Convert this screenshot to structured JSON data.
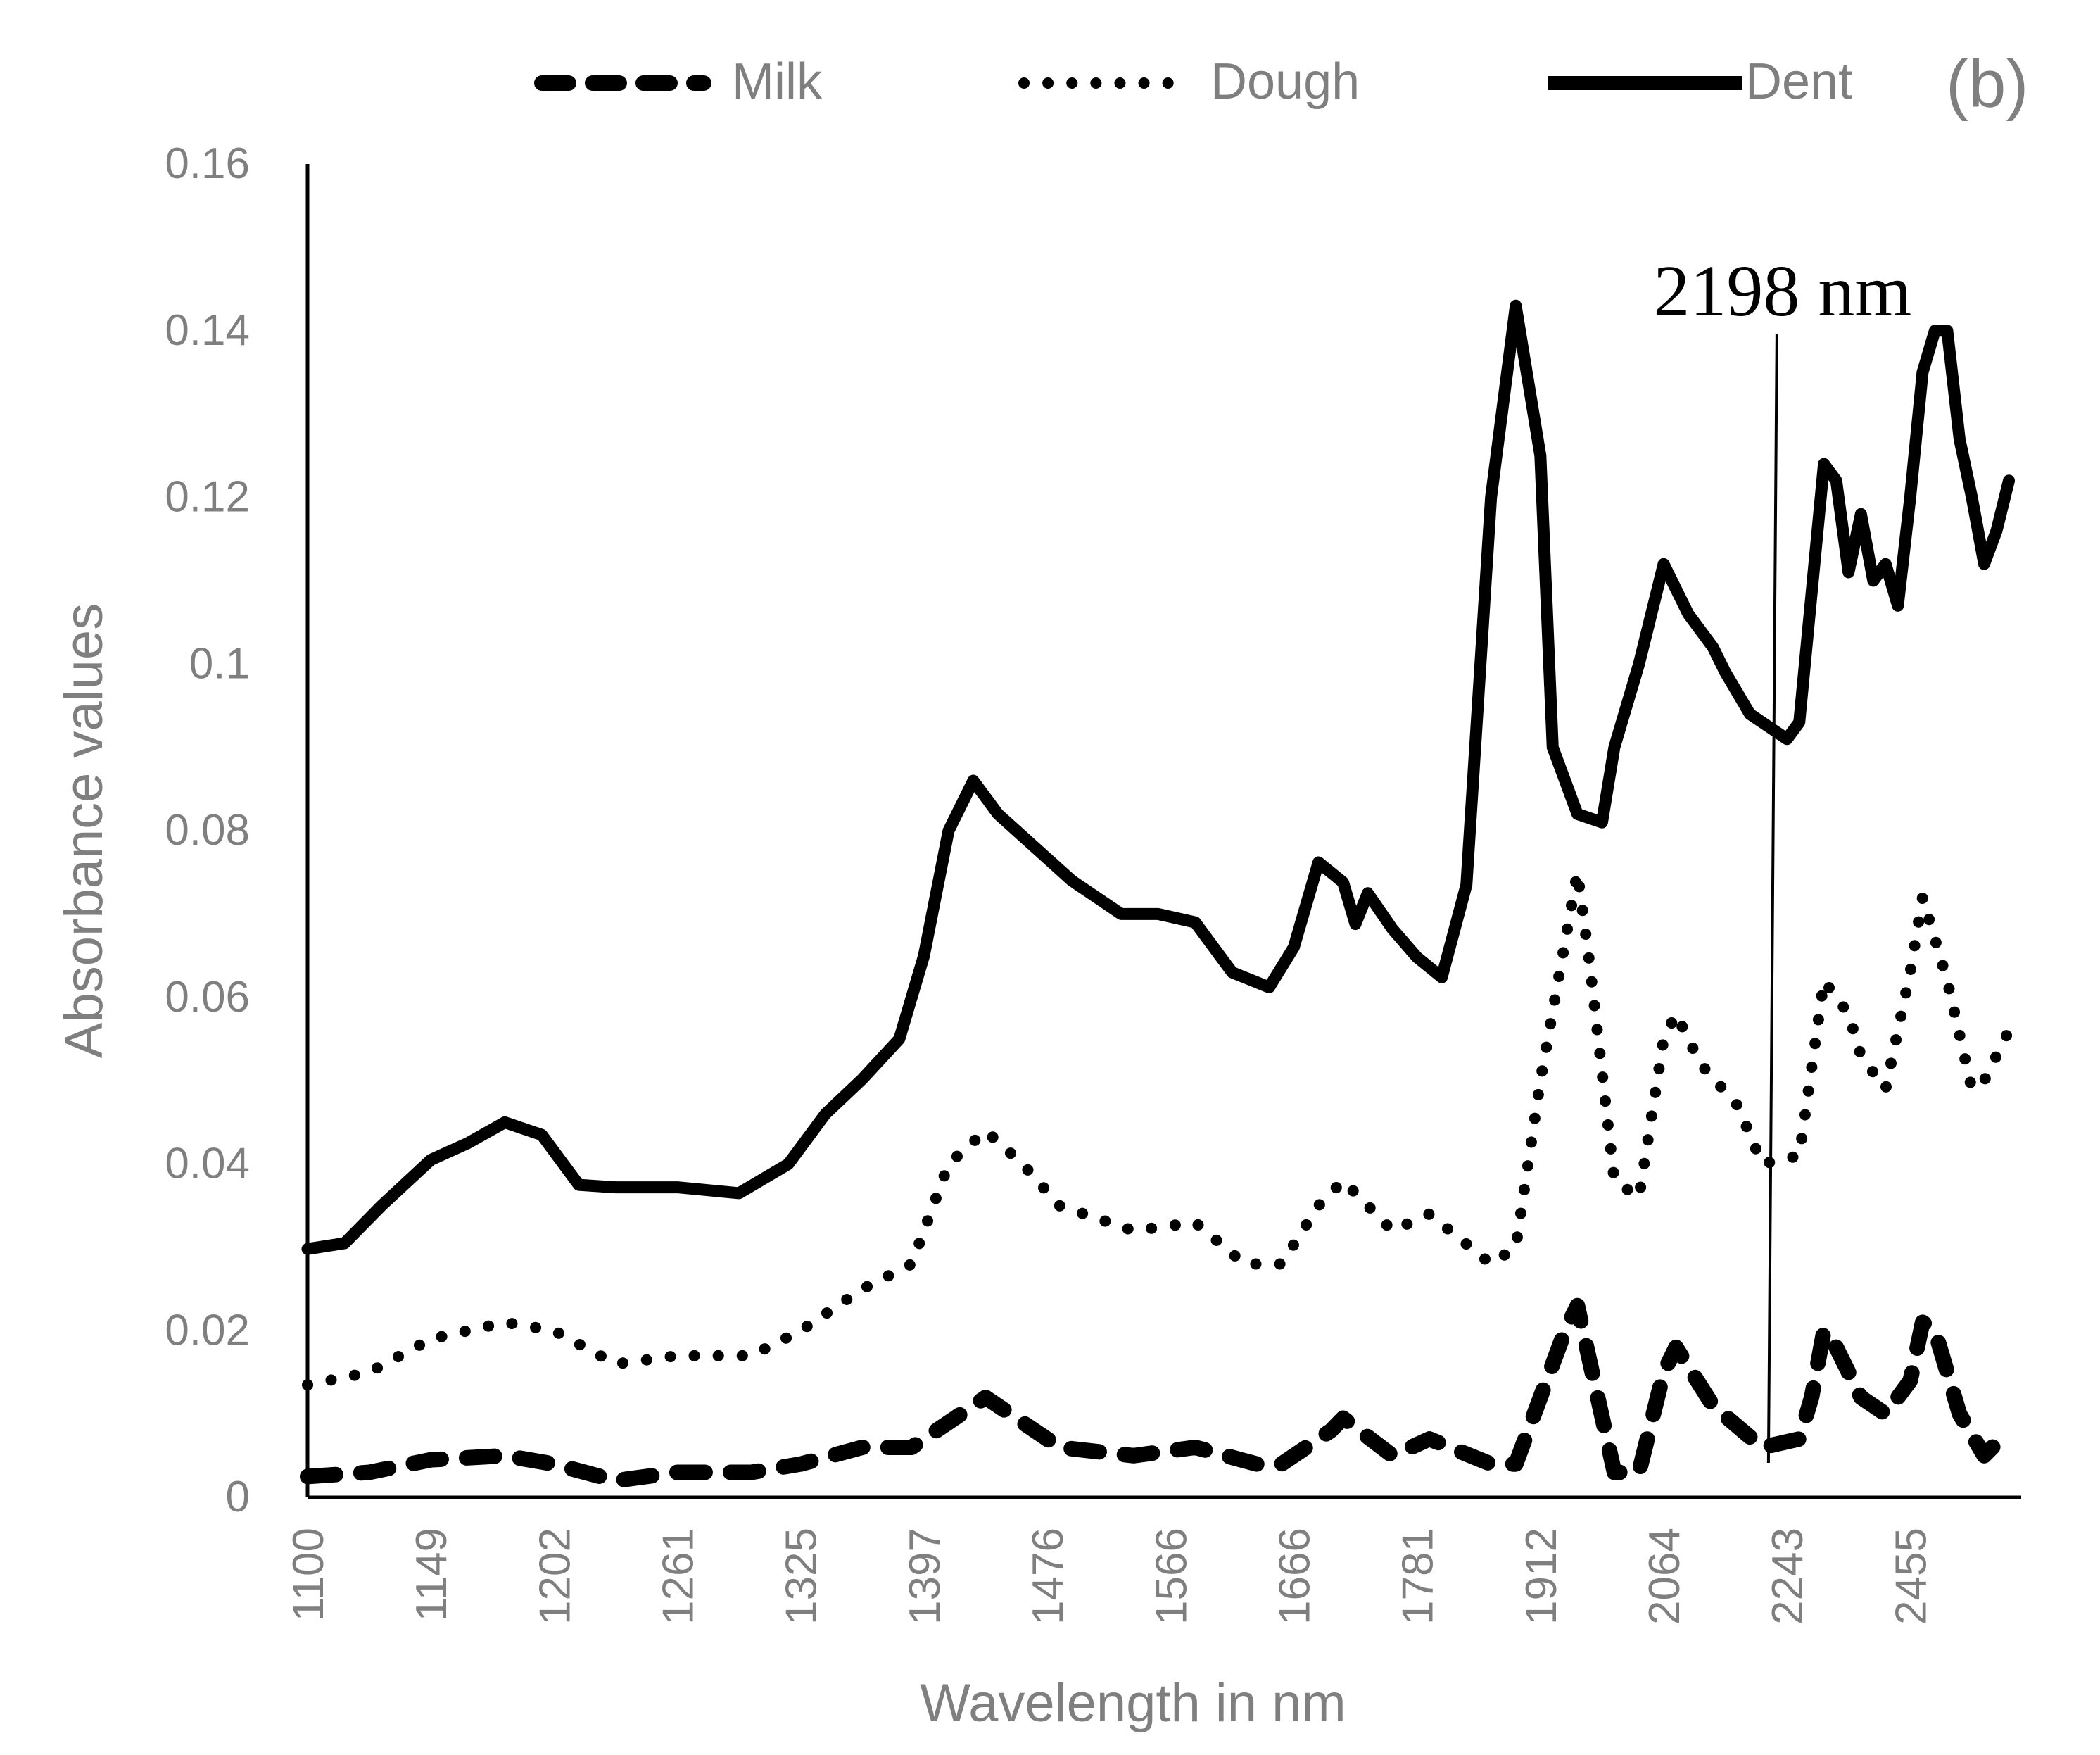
{
  "chart_data": {
    "type": "line",
    "panel_label": "(b)",
    "xlabel": "Wavelength in nm",
    "ylabel": "Absorbance values",
    "ylim": [
      0,
      0.16
    ],
    "yticks": [
      {
        "value": 0,
        "label": "0"
      },
      {
        "value": 0.02,
        "label": "0.02"
      },
      {
        "value": 0.04,
        "label": "0.04"
      },
      {
        "value": 0.06,
        "label": "0.06"
      },
      {
        "value": 0.08,
        "label": "0.08"
      },
      {
        "value": 0.1,
        "label": "0.1"
      },
      {
        "value": 0.12,
        "label": "0.12"
      },
      {
        "value": 0.14,
        "label": "0.14"
      },
      {
        "value": 0.16,
        "label": "0.16"
      }
    ],
    "x_sample_count": 140,
    "xticks": [
      {
        "index": 0,
        "label": "1100"
      },
      {
        "index": 10,
        "label": "1149"
      },
      {
        "index": 20,
        "label": "1202"
      },
      {
        "index": 30,
        "label": "1261"
      },
      {
        "index": 40,
        "label": "1325"
      },
      {
        "index": 50,
        "label": "1397"
      },
      {
        "index": 60,
        "label": "1476"
      },
      {
        "index": 70,
        "label": "1566"
      },
      {
        "index": 80,
        "label": "1666"
      },
      {
        "index": 90,
        "label": "1781"
      },
      {
        "index": 100,
        "label": "1912"
      },
      {
        "index": 110,
        "label": "2064"
      },
      {
        "index": 120,
        "label": "2243"
      },
      {
        "index": 130,
        "label": "2455"
      }
    ],
    "series": [
      {
        "name": "Milk",
        "style": "dashed",
        "color": "#000000",
        "points": [
          [
            0,
            0.0025
          ],
          [
            5,
            0.003
          ],
          [
            10,
            0.0045
          ],
          [
            16,
            0.005
          ],
          [
            20,
            0.004
          ],
          [
            25,
            0.002
          ],
          [
            30,
            0.003
          ],
          [
            36,
            0.003
          ],
          [
            40,
            0.004
          ],
          [
            45,
            0.006
          ],
          [
            49,
            0.006
          ],
          [
            53,
            0.01
          ],
          [
            55,
            0.012
          ],
          [
            58,
            0.009
          ],
          [
            61,
            0.006
          ],
          [
            67,
            0.005
          ],
          [
            72,
            0.006
          ],
          [
            77,
            0.004
          ],
          [
            79,
            0.004
          ],
          [
            83,
            0.008
          ],
          [
            84,
            0.0095
          ],
          [
            88,
            0.005
          ],
          [
            91,
            0.007
          ],
          [
            96,
            0.004
          ],
          [
            98,
            0.004
          ],
          [
            102,
            0.02
          ],
          [
            103,
            0.023
          ],
          [
            106,
            0.003
          ],
          [
            108,
            0.003
          ],
          [
            110,
            0.015
          ],
          [
            111,
            0.018
          ],
          [
            114,
            0.011
          ],
          [
            118,
            0.006
          ],
          [
            121,
            0.007
          ],
          [
            122,
            0.012
          ],
          [
            123,
            0.02
          ],
          [
            124,
            0.018
          ],
          [
            126,
            0.012
          ],
          [
            128,
            0.01
          ],
          [
            130,
            0.014
          ],
          [
            131,
            0.021
          ],
          [
            132,
            0.02
          ],
          [
            134,
            0.01
          ],
          [
            136,
            0.005
          ],
          [
            138,
            0.008
          ]
        ]
      },
      {
        "name": "Dough",
        "style": "dotted",
        "color": "#000000",
        "points": [
          [
            0,
            0.0135
          ],
          [
            5,
            0.015
          ],
          [
            10,
            0.019
          ],
          [
            16,
            0.021
          ],
          [
            20,
            0.02
          ],
          [
            25,
            0.016
          ],
          [
            30,
            0.017
          ],
          [
            36,
            0.017
          ],
          [
            40,
            0.02
          ],
          [
            45,
            0.025
          ],
          [
            49,
            0.028
          ],
          [
            52,
            0.04
          ],
          [
            55,
            0.044
          ],
          [
            58,
            0.04
          ],
          [
            61,
            0.035
          ],
          [
            67,
            0.032
          ],
          [
            72,
            0.033
          ],
          [
            76,
            0.028
          ],
          [
            79,
            0.028
          ],
          [
            82,
            0.035
          ],
          [
            84,
            0.038
          ],
          [
            88,
            0.032
          ],
          [
            91,
            0.034
          ],
          [
            96,
            0.028
          ],
          [
            98,
            0.03
          ],
          [
            100,
            0.05
          ],
          [
            103,
            0.075
          ],
          [
            104,
            0.064
          ],
          [
            106,
            0.038
          ],
          [
            108,
            0.036
          ],
          [
            110,
            0.055
          ],
          [
            111,
            0.058
          ],
          [
            113,
            0.052
          ],
          [
            116,
            0.047
          ],
          [
            118,
            0.04
          ],
          [
            121,
            0.041
          ],
          [
            123,
            0.062
          ],
          [
            125,
            0.058
          ],
          [
            126,
            0.053
          ],
          [
            128,
            0.049
          ],
          [
            130,
            0.063
          ],
          [
            131,
            0.072
          ],
          [
            133,
            0.062
          ],
          [
            135,
            0.049
          ],
          [
            136,
            0.05
          ],
          [
            138,
            0.056
          ]
        ]
      },
      {
        "name": "Dent",
        "style": "solid",
        "color": "#000000",
        "points": [
          [
            0,
            0.0298
          ],
          [
            3,
            0.0305
          ],
          [
            6,
            0.035
          ],
          [
            10,
            0.0405
          ],
          [
            13,
            0.0425
          ],
          [
            16,
            0.045
          ],
          [
            19,
            0.0435
          ],
          [
            22,
            0.0375
          ],
          [
            25,
            0.0372
          ],
          [
            30,
            0.0372
          ],
          [
            35,
            0.0365
          ],
          [
            39,
            0.04
          ],
          [
            42,
            0.046
          ],
          [
            45,
            0.0502
          ],
          [
            48,
            0.055
          ],
          [
            50,
            0.065
          ],
          [
            52,
            0.08
          ],
          [
            54,
            0.086
          ],
          [
            56,
            0.082
          ],
          [
            59,
            0.078
          ],
          [
            62,
            0.074
          ],
          [
            66,
            0.07
          ],
          [
            69,
            0.07
          ],
          [
            72,
            0.069
          ],
          [
            75,
            0.063
          ],
          [
            78,
            0.0612
          ],
          [
            80,
            0.066
          ],
          [
            82,
            0.0762
          ],
          [
            84,
            0.0738
          ],
          [
            85,
            0.0688
          ],
          [
            86,
            0.0725
          ],
          [
            88,
            0.0682
          ],
          [
            90,
            0.0648
          ],
          [
            92,
            0.0624
          ],
          [
            94,
            0.0735
          ],
          [
            96,
            0.12
          ],
          [
            98,
            0.143
          ],
          [
            100,
            0.125
          ],
          [
            101,
            0.09
          ],
          [
            103,
            0.082
          ],
          [
            105,
            0.081
          ],
          [
            106,
            0.09
          ],
          [
            108,
            0.1
          ],
          [
            110,
            0.112
          ],
          [
            112,
            0.106
          ],
          [
            114,
            0.102
          ],
          [
            115,
            0.099
          ],
          [
            117,
            0.094
          ],
          [
            119,
            0.092
          ],
          [
            120,
            0.091
          ],
          [
            121,
            0.093
          ],
          [
            123,
            0.124
          ],
          [
            124,
            0.122
          ],
          [
            125,
            0.111
          ],
          [
            126,
            0.118
          ],
          [
            127,
            0.11
          ],
          [
            128,
            0.112
          ],
          [
            129,
            0.107
          ],
          [
            130,
            0.12
          ],
          [
            131,
            0.135
          ],
          [
            132,
            0.14
          ],
          [
            133,
            0.14
          ],
          [
            134,
            0.127
          ],
          [
            135,
            0.12
          ],
          [
            136,
            0.112
          ],
          [
            137,
            0.116
          ],
          [
            138,
            0.122
          ]
        ]
      }
    ],
    "annotations": [
      {
        "label": "2198 nm",
        "x_index": 118.5,
        "x_nm": 2198
      }
    ]
  }
}
